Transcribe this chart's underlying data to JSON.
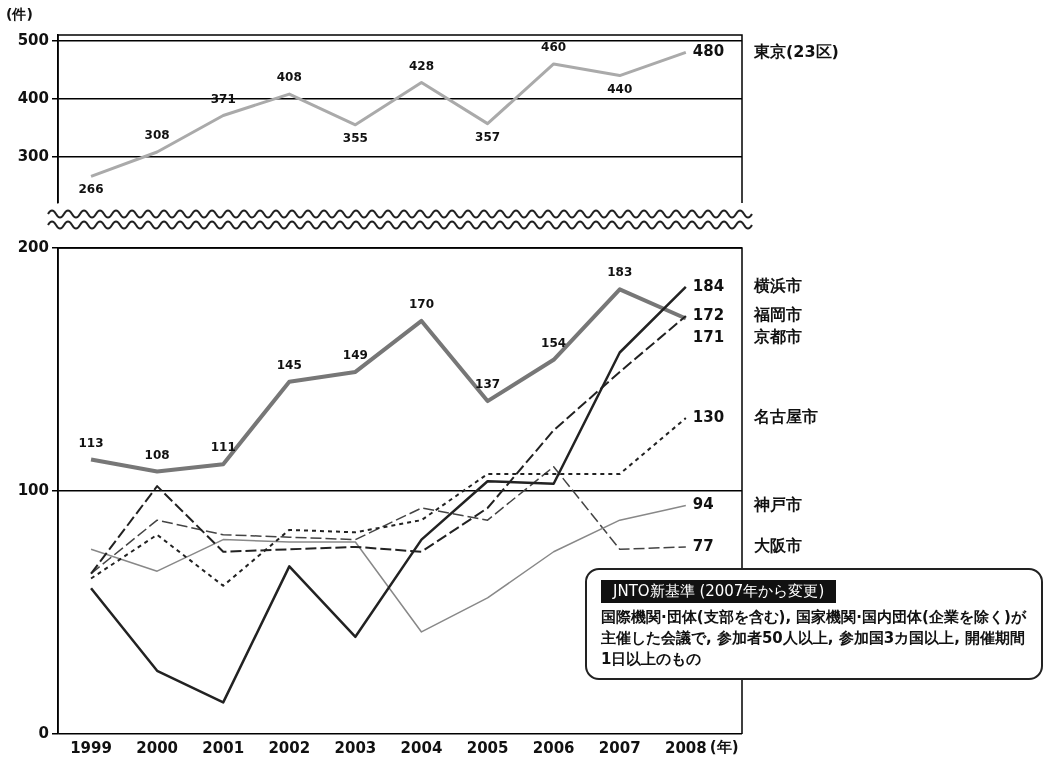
{
  "chart_data": [
    {
      "type": "line",
      "ylabel": "(件)",
      "categories": [
        "1999",
        "2000",
        "2001",
        "2002",
        "2003",
        "2004",
        "2005",
        "2006",
        "2007",
        "2008"
      ],
      "series": [
        {
          "name": "東京(23区)",
          "color": "#aaaaaa",
          "line_style": "solid",
          "values": [
            266,
            308,
            371,
            408,
            355,
            428,
            357,
            460,
            440,
            480
          ]
        }
      ],
      "ylim": [
        220,
        510
      ],
      "yticks": [
        300,
        400,
        500
      ],
      "grid": "y",
      "data_labels": true,
      "tick_labels": "y"
    },
    {
      "type": "line",
      "xlabel": "(年)",
      "categories": [
        "1999",
        "2000",
        "2001",
        "2002",
        "2003",
        "2004",
        "2005",
        "2006",
        "2007",
        "2008"
      ],
      "series": [
        {
          "name": "横浜市",
          "color": "#222222",
          "line_style": "solid",
          "values": [
            60,
            26,
            13,
            69,
            40,
            80,
            104,
            103,
            157,
            184
          ],
          "value_labels": [
            null,
            null,
            null,
            null,
            null,
            null,
            null,
            null,
            null,
            "184"
          ]
        },
        {
          "name": "福岡市",
          "color": "#222222",
          "line_style": "dashed",
          "values": [
            66,
            102,
            75,
            76,
            77,
            75,
            93,
            125,
            149,
            172
          ],
          "value_labels": [
            null,
            null,
            null,
            null,
            null,
            null,
            null,
            null,
            null,
            "172"
          ]
        },
        {
          "name": "京都市",
          "color": "#777777",
          "line_style": "solid",
          "values": [
            113,
            108,
            111,
            145,
            149,
            170,
            137,
            154,
            183,
            171
          ],
          "value_labels": [
            "113",
            "108",
            "111",
            "145",
            "149",
            "170",
            "137",
            "154",
            "183",
            "171"
          ]
        },
        {
          "name": "名古屋市",
          "color": "#222222",
          "line_style": "dotted",
          "values": [
            64,
            82,
            61,
            84,
            83,
            88,
            107,
            107,
            107,
            130
          ],
          "value_labels": [
            null,
            null,
            null,
            null,
            null,
            null,
            null,
            null,
            null,
            "130"
          ]
        },
        {
          "name": "神戸市",
          "color": "#888888",
          "line_style": "solid",
          "values": [
            76,
            67,
            80,
            79,
            79,
            42,
            56,
            75,
            88,
            94
          ],
          "value_labels": [
            null,
            null,
            null,
            null,
            null,
            null,
            null,
            null,
            null,
            "94"
          ]
        },
        {
          "name": "大阪市",
          "color": "#444444",
          "line_style": "dashed",
          "values": [
            66,
            88,
            82,
            81,
            80,
            93,
            88,
            110,
            76,
            77
          ],
          "value_labels": [
            null,
            null,
            null,
            null,
            null,
            null,
            null,
            null,
            null,
            "77"
          ]
        }
      ],
      "ylim": [
        0,
        200
      ],
      "yticks": [
        0,
        100,
        200
      ],
      "grid": "y",
      "annotations": [
        "JNTO新基準 (2007年から変更)",
        "国際機関·団体(支部を含む), 国家機関·国内団体(企業を除く)が主催した会議で, 参加者50人以上, 参加国3カ国以上, 開催期間1日以上のもの"
      ]
    }
  ]
}
